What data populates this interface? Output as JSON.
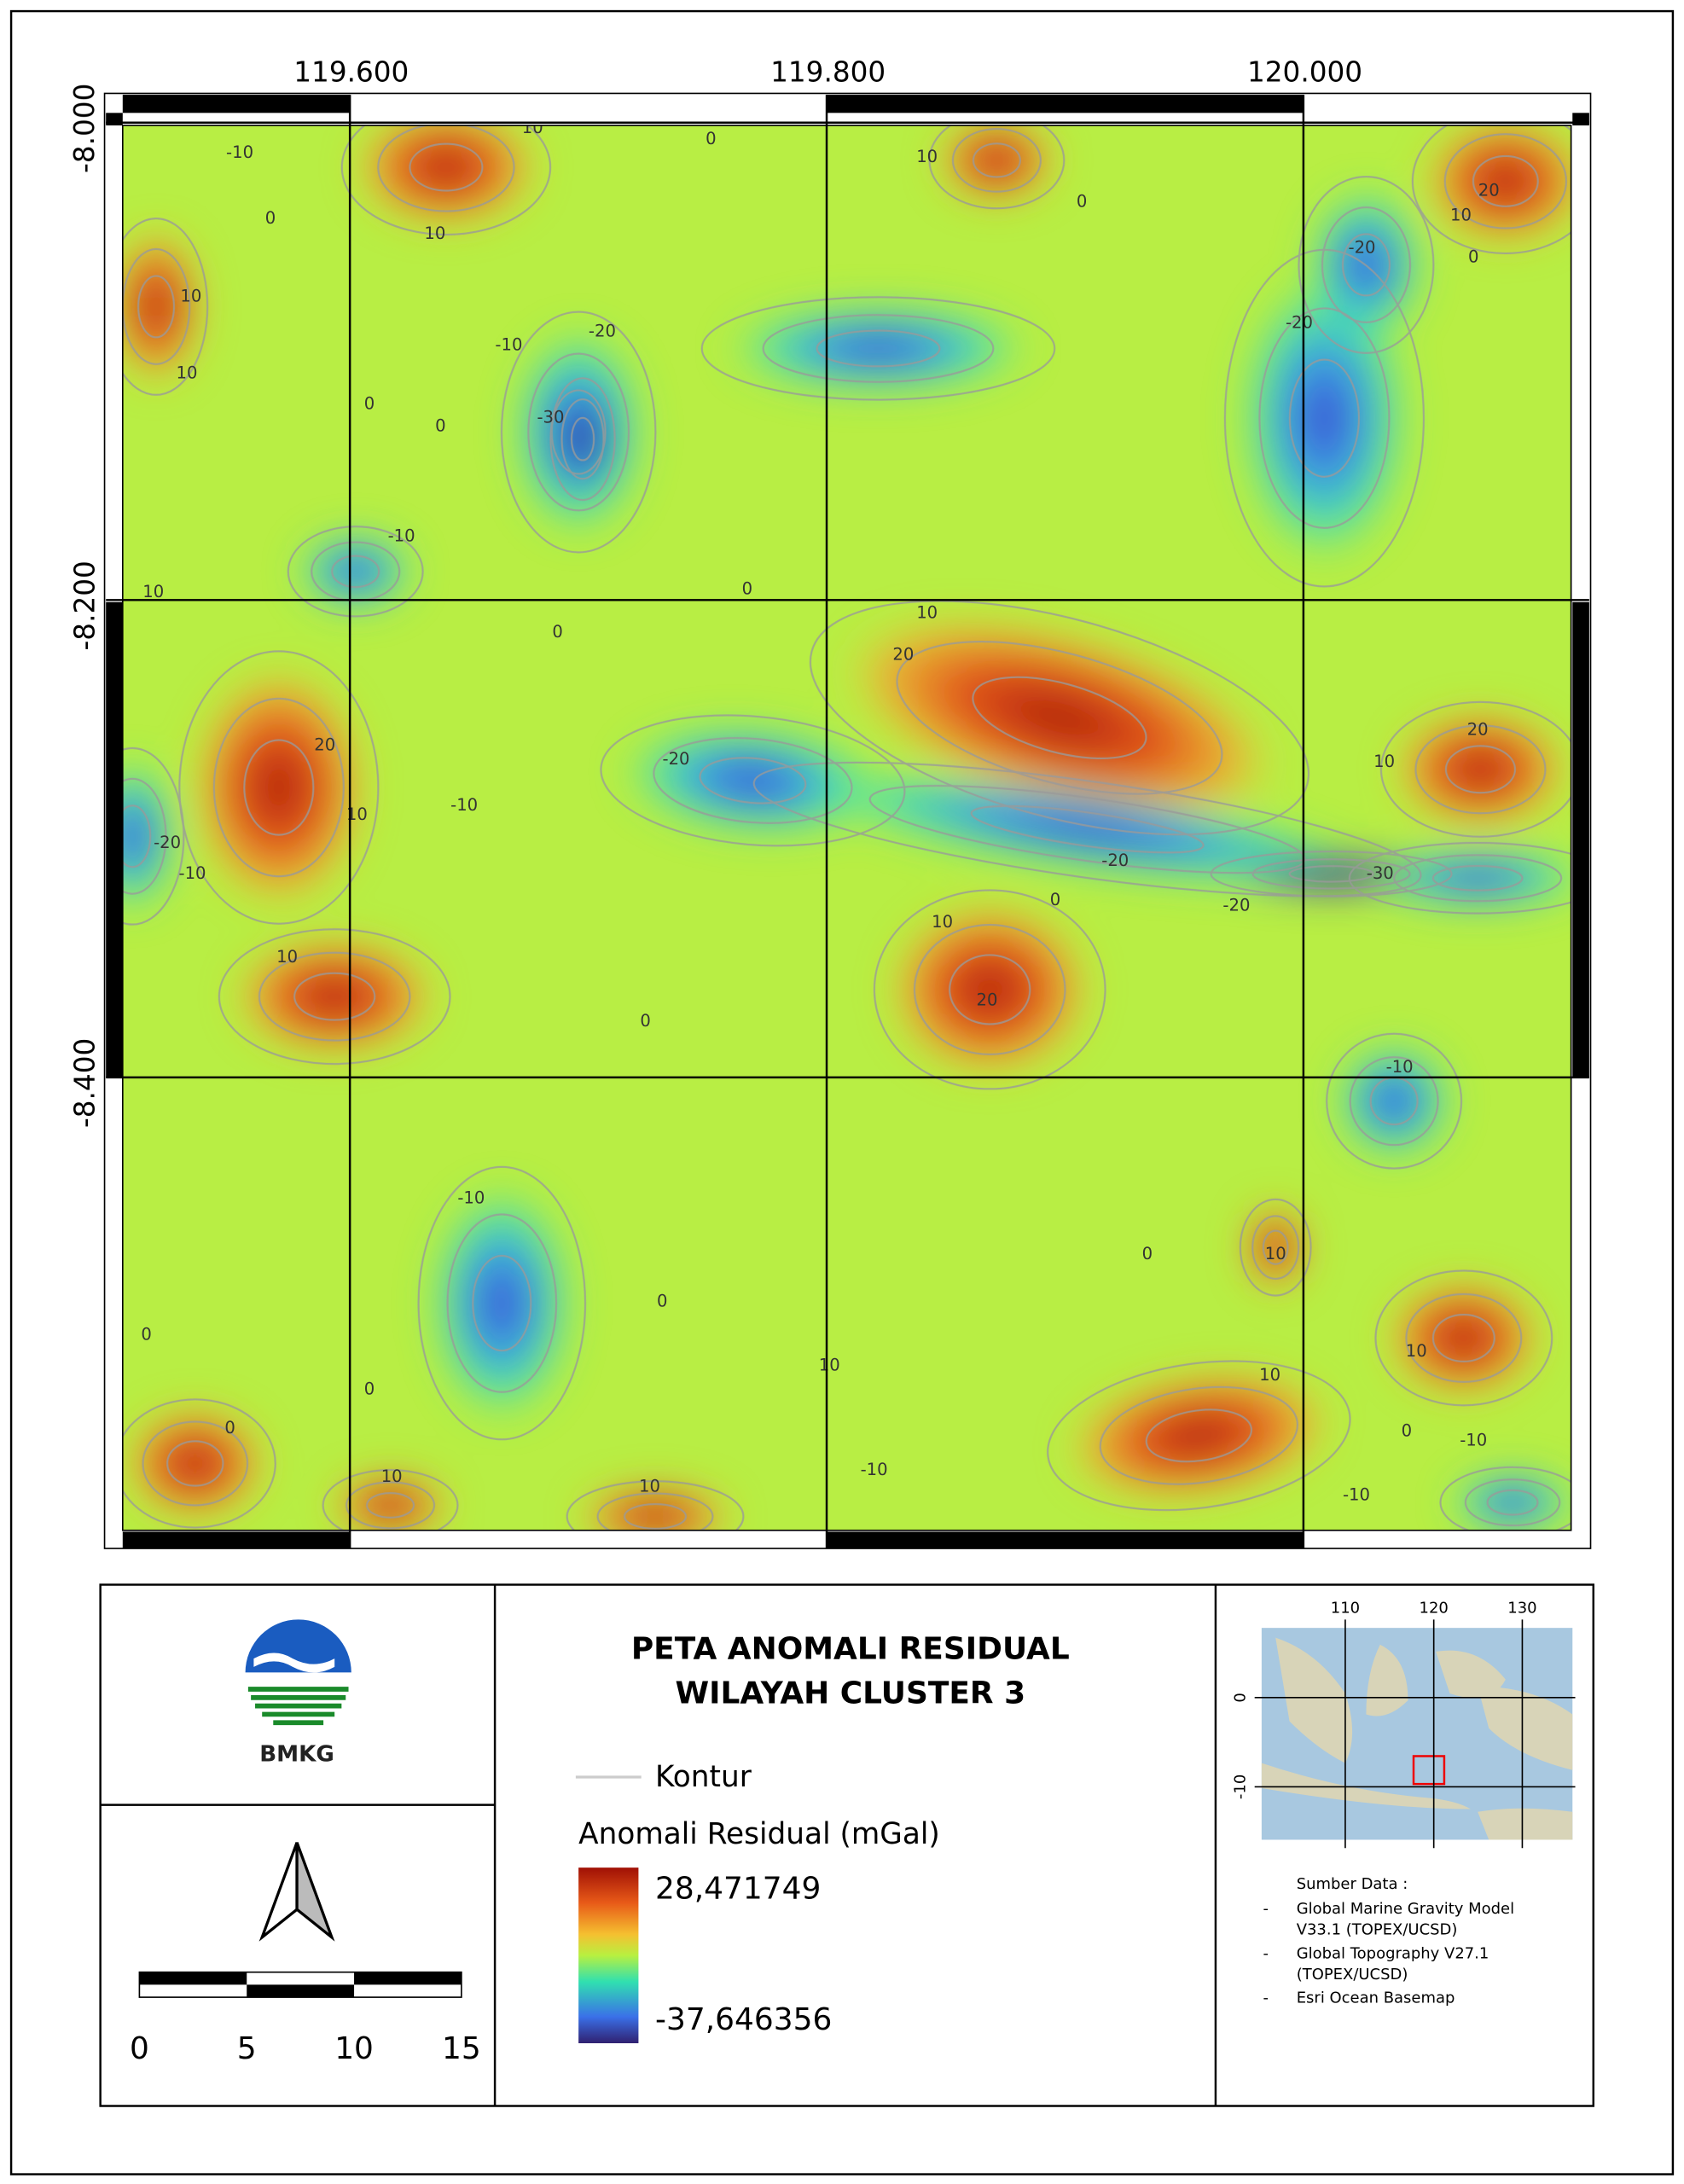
{
  "map": {
    "x_ticks": [
      {
        "value": 119.6,
        "label": "119.600"
      },
      {
        "value": 119.8,
        "label": "119.800"
      },
      {
        "value": 120.0,
        "label": "120.000"
      }
    ],
    "y_ticks": [
      {
        "value": -8.0,
        "label": "-8.000"
      },
      {
        "value": -8.2,
        "label": "-8.200"
      },
      {
        "value": -8.4,
        "label": "-8.400"
      }
    ],
    "contour_labels": [
      "-10",
      "10",
      "0",
      "10",
      "0",
      "20",
      "10",
      "0",
      "0",
      "10",
      "-20",
      "10",
      "-10",
      "-20",
      "-20",
      "10",
      "0",
      "0",
      "-30",
      "-10",
      "10",
      "0",
      "10",
      "0",
      "20",
      "20",
      "-20",
      "20",
      "10",
      "-10",
      "10",
      "-20",
      "-10",
      "-20",
      "-30",
      "0",
      "-20",
      "10",
      "10",
      "20",
      "0",
      "-10",
      "-10",
      "0",
      "10",
      "0",
      "0",
      "10",
      "10",
      "10",
      "0",
      "0",
      "0",
      "-10",
      "-10",
      "10",
      "10",
      "-10"
    ]
  },
  "logo": {
    "text": "BMKG"
  },
  "title": [
    "PETA ANOMALI RESIDUAL",
    "WILAYAH CLUSTER 3"
  ],
  "legend": {
    "contour": "Kontur",
    "colorbar_title": "Anomali Residual (mGal)",
    "max_label": "28,471749",
    "min_label": "-37,646356"
  },
  "scale_bar": {
    "labels": [
      0,
      5,
      10,
      15
    ]
  },
  "inset": {
    "x_ticks": [
      110,
      120,
      130
    ],
    "y_ticks": [
      0,
      -10
    ]
  },
  "source": {
    "heading": "Sumber Data :",
    "items": [
      "Global Marine Gravity Model V33.1 (TOPEX/UCSD)",
      "Global Topography V27.1 (TOPEX/UCSD)",
      "Esri Ocean Basemap"
    ]
  }
}
